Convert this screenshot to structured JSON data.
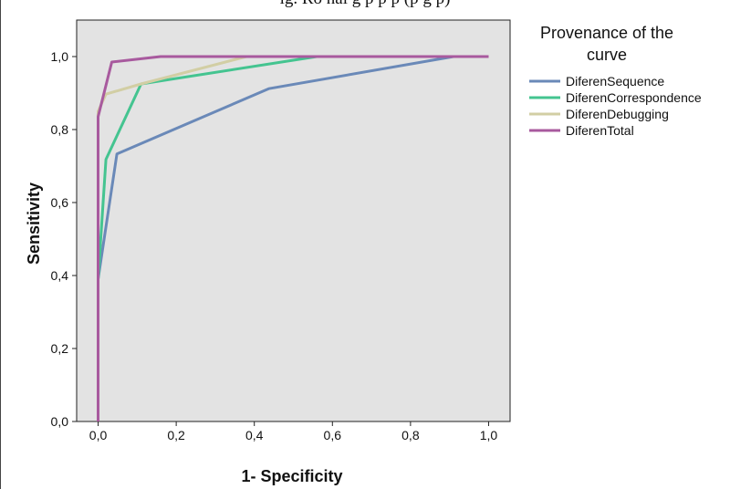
{
  "header": {
    "caption": "ig. Ro   nal   g   p   p   p   (p   g   p)"
  },
  "chart_data": {
    "type": "line",
    "xlabel": "1- Specificity",
    "ylabel": "Sensitivity",
    "xlim": [
      0,
      1
    ],
    "ylim": [
      0,
      1.1
    ],
    "x_ticks": [
      0.0,
      0.2,
      0.4,
      0.6,
      0.8,
      1.0
    ],
    "y_ticks": [
      0.0,
      0.2,
      0.4,
      0.6,
      0.8,
      1.0
    ],
    "x_tick_labels": [
      "0,0",
      "0,2",
      "0,4",
      "0,6",
      "0,8",
      "1,0"
    ],
    "y_tick_labels": [
      "0,0",
      "0,2",
      "0,4",
      "0,6",
      "0,8",
      "1,0"
    ],
    "grid": false,
    "plot_background": "#e3e3e3",
    "legend": {
      "title": "Provenance of the curve",
      "title_lines": [
        "Provenance of the",
        "curve"
      ],
      "placement": "right"
    },
    "series": [
      {
        "name": "DiferenSequence",
        "color": "#6a89b8",
        "points": [
          [
            0,
            0
          ],
          [
            0,
            0.39
          ],
          [
            0.048,
            0.733
          ],
          [
            0.437,
            0.912
          ],
          [
            0.91,
            1.0
          ],
          [
            1.0,
            1.0
          ]
        ]
      },
      {
        "name": "DiferenCorrespondence",
        "color": "#44c490",
        "points": [
          [
            0,
            0
          ],
          [
            0,
            0.39
          ],
          [
            0.02,
            0.718
          ],
          [
            0.11,
            0.925
          ],
          [
            0.56,
            1.0
          ],
          [
            1.0,
            1.0
          ]
        ]
      },
      {
        "name": "DiferenDebugging",
        "color": "#d2cea4",
        "points": [
          [
            0,
            0
          ],
          [
            0,
            0.85
          ],
          [
            0.02,
            0.897
          ],
          [
            0.11,
            0.925
          ],
          [
            0.38,
            1.0
          ],
          [
            1.0,
            1.0
          ]
        ]
      },
      {
        "name": "DiferenTotal",
        "color": "#a85a9e",
        "points": [
          [
            0,
            0
          ],
          [
            0,
            0.835
          ],
          [
            0.035,
            0.985
          ],
          [
            0.16,
            1.0
          ],
          [
            1.0,
            1.0
          ]
        ]
      }
    ]
  }
}
